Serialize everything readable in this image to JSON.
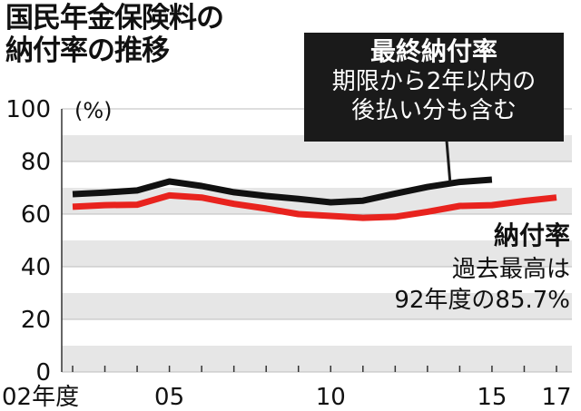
{
  "title_lines": [
    "国民年金保険料の",
    "納付率の推移"
  ],
  "callout": {
    "head": "最終納付率",
    "lines": [
      "期限から2年以内の",
      "後払い分も含む"
    ]
  },
  "annotation": {
    "head": "納付率",
    "lines": [
      "過去最高は",
      "92年度の85.7%"
    ]
  },
  "colors": {
    "final_series": "#111111",
    "rate_series": "#e8231e",
    "band": "#e6e6e6",
    "callout_bg": "#1a1a1a"
  },
  "chart_data": {
    "type": "line",
    "title": "国民年金保険料の納付率の推移",
    "ylabel": "(%)",
    "ylim": [
      0,
      100
    ],
    "yticks": [
      0,
      20,
      40,
      60,
      80,
      100
    ],
    "xlim": [
      2002,
      2017
    ],
    "xticks": [
      {
        "x": 2002,
        "label": "02年度"
      },
      {
        "x": 2005,
        "label": "05"
      },
      {
        "x": 2010,
        "label": "10"
      },
      {
        "x": 2015,
        "label": "15"
      },
      {
        "x": 2017,
        "label": "17"
      }
    ],
    "series": [
      {
        "name": "最終納付率",
        "color": "#111111",
        "x": [
          2002,
          2003,
          2004,
          2005,
          2006,
          2007,
          2008,
          2009,
          2010,
          2011,
          2012,
          2013,
          2014,
          2015
        ],
        "values": [
          67.6,
          68.2,
          69.0,
          72.4,
          70.7,
          68.3,
          66.9,
          65.8,
          64.5,
          65.1,
          67.8,
          70.3,
          72.2,
          73.1
        ]
      },
      {
        "name": "納付率",
        "color": "#e8231e",
        "x": [
          2002,
          2003,
          2004,
          2005,
          2006,
          2007,
          2008,
          2009,
          2010,
          2011,
          2012,
          2013,
          2014,
          2015,
          2016,
          2017
        ],
        "values": [
          62.8,
          63.4,
          63.6,
          67.1,
          66.3,
          63.9,
          62.1,
          60.0,
          59.3,
          58.6,
          59.0,
          60.9,
          63.1,
          63.4,
          65.0,
          66.3
        ]
      }
    ]
  }
}
